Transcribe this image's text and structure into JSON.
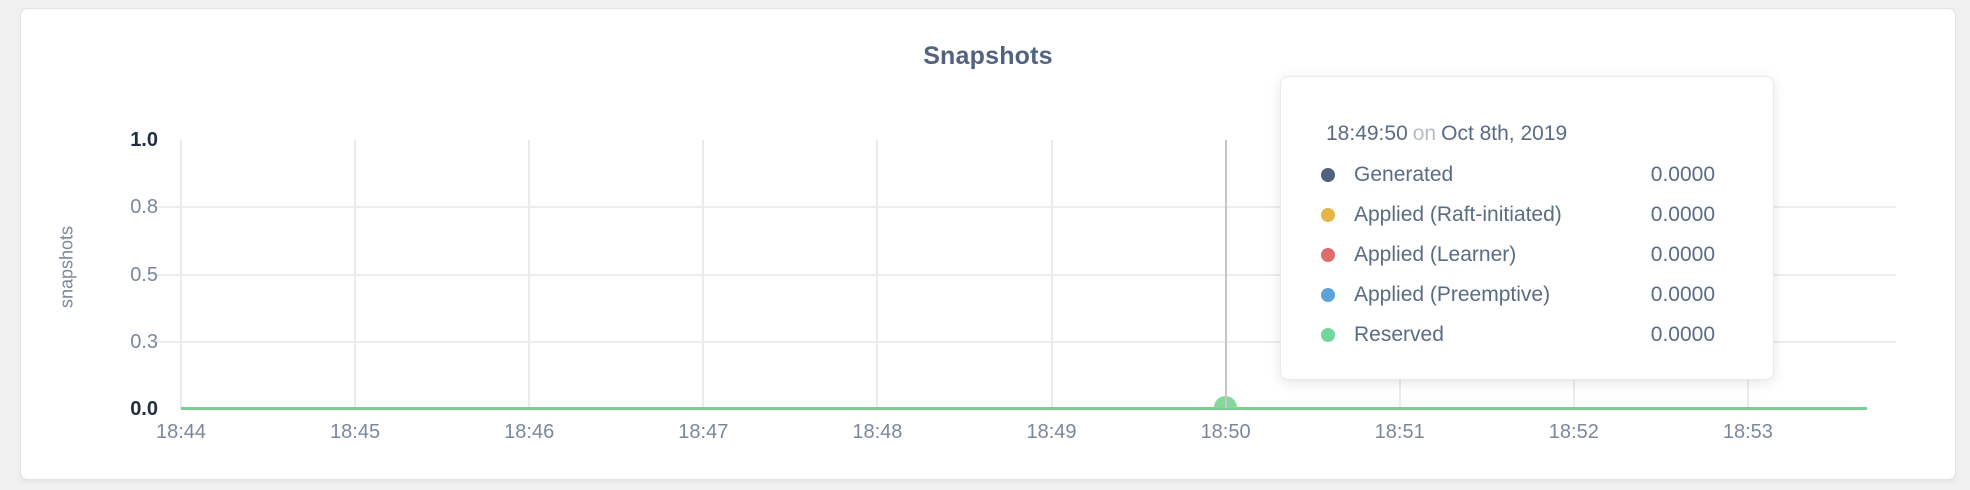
{
  "chart": {
    "title": "Snapshots",
    "y_axis": {
      "label": "snapshots",
      "ticks": [
        "1.0",
        "0.8",
        "0.5",
        "0.3",
        "0.0"
      ]
    },
    "x_axis": {
      "ticks": [
        "18:44",
        "18:45",
        "18:46",
        "18:47",
        "18:48",
        "18:49",
        "18:50",
        "18:51",
        "18:52",
        "18:53"
      ]
    }
  },
  "tooltip": {
    "time": "18:49:50",
    "connector": "on",
    "date": "Oct 8th, 2019",
    "rows": [
      {
        "label": "Generated",
        "value": "0.0000",
        "color": "#51617f"
      },
      {
        "label": "Applied (Raft-initiated)",
        "value": "0.0000",
        "color": "#e7b545"
      },
      {
        "label": "Applied (Learner)",
        "value": "0.0000",
        "color": "#e06c6c"
      },
      {
        "label": "Applied (Preemptive)",
        "value": "0.0000",
        "color": "#5ca3d9"
      },
      {
        "label": "Reserved",
        "value": "0.0000",
        "color": "#70d699"
      }
    ]
  },
  "colors": {
    "series_line_green": "#7bce91",
    "hover_dot_green": "#85d79c",
    "cursor_gray": "#c7c7c9"
  },
  "chart_data": {
    "type": "line",
    "title": "Snapshots",
    "xlabel": "",
    "ylabel": "snapshots",
    "ylim": [
      0,
      1
    ],
    "y_tick_values": [
      1.0,
      0.75,
      0.5,
      0.25,
      0.0
    ],
    "y_tick_labels": [
      "1.0",
      "0.8",
      "0.5",
      "0.3",
      "0.0"
    ],
    "x": [
      "18:44",
      "18:45",
      "18:46",
      "18:47",
      "18:48",
      "18:49",
      "18:50",
      "18:51",
      "18:52",
      "18:53"
    ],
    "grid": true,
    "legend_position": "tooltip-only",
    "series": [
      {
        "name": "Generated",
        "color": "#51617f",
        "values": [
          0,
          0,
          0,
          0,
          0,
          0,
          0,
          0,
          0,
          0
        ]
      },
      {
        "name": "Applied (Raft-initiated)",
        "color": "#e7b545",
        "values": [
          0,
          0,
          0,
          0,
          0,
          0,
          0,
          0,
          0,
          0
        ]
      },
      {
        "name": "Applied (Learner)",
        "color": "#e06c6c",
        "values": [
          0,
          0,
          0,
          0,
          0,
          0,
          0,
          0,
          0,
          0
        ]
      },
      {
        "name": "Applied (Preemptive)",
        "color": "#5ca3d9",
        "values": [
          0,
          0,
          0,
          0,
          0,
          0,
          0,
          0,
          0,
          0
        ]
      },
      {
        "name": "Reserved",
        "color": "#70d699",
        "values": [
          0,
          0,
          0,
          0,
          0,
          0,
          0,
          0,
          0,
          0
        ]
      }
    ],
    "hover_point": {
      "time": "18:49:50",
      "date": "Oct 8th, 2019",
      "all_series_value": 0.0
    }
  }
}
